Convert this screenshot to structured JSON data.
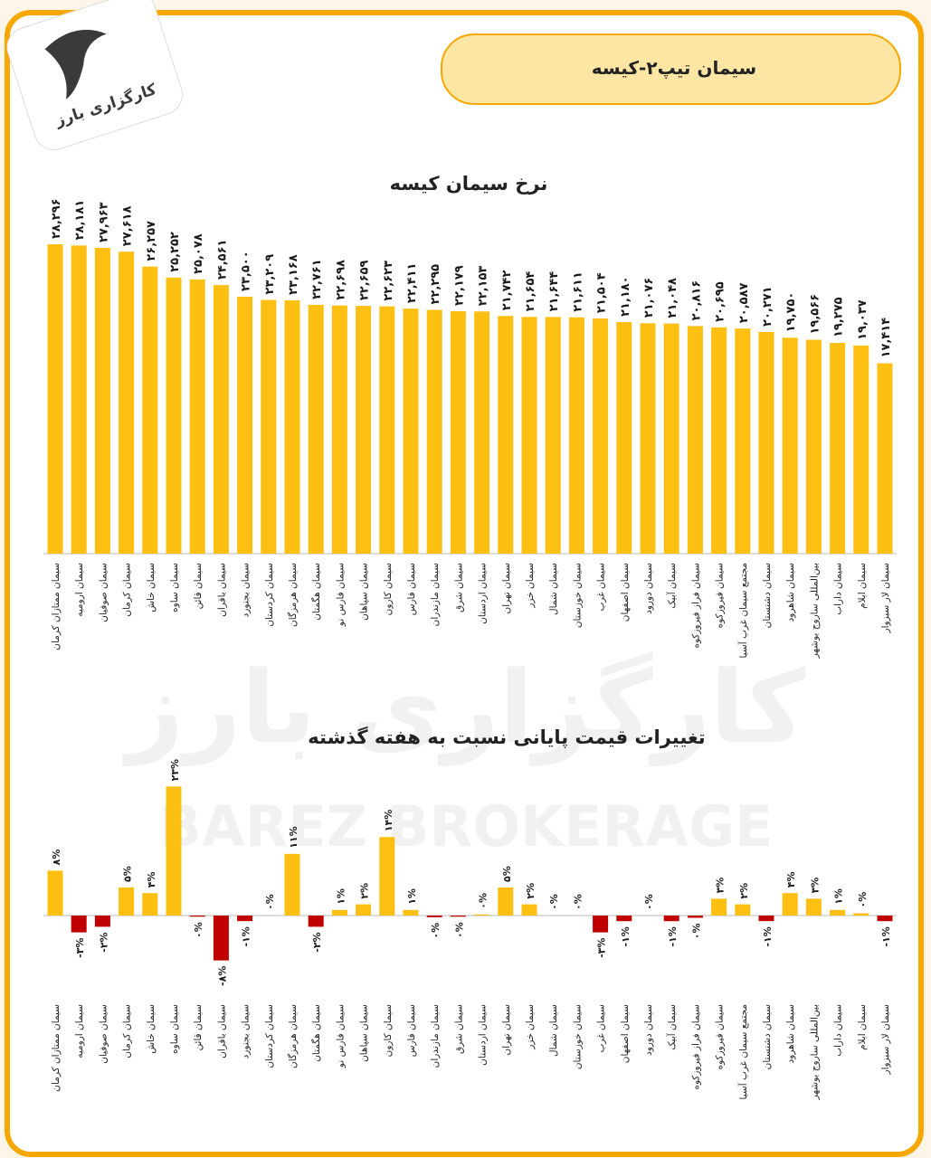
{
  "header": {
    "title": "سیمان تیپ۲-کیسه",
    "logo": "کارگزاری بارز",
    "watermark_fa": "کارگزاری بارز",
    "watermark_en": "BAREZ BROKERAGE"
  },
  "chart_data": [
    {
      "type": "bar",
      "title": "نرخ سیمان کیسه",
      "color": "#fdbf12",
      "categories": [
        "سیمان ممتازان کرمان",
        "سیمان ارومیه",
        "سیمان صوفیان",
        "سیمان کرمان",
        "سیمان خاش",
        "سیمان ساوه",
        "سیمان قائن",
        "سیمان باقران",
        "سیمان بجنورد",
        "سیمان کردستان",
        "سیمان هرمزگان",
        "سیمان هگمتان",
        "سیمان فارس نو",
        "سیمان سپاهان",
        "سیمان کارون",
        "سیمان فارس",
        "سیمان مازندران",
        "سیمان شرق",
        "سیمان اردستان",
        "سیمان تهران",
        "سیمان خزر",
        "سیمان شمال",
        "سیمان خوزستان",
        "سیمان غرب",
        "سیمان اصفهان",
        "سیمان دورود",
        "سیمان آبیک",
        "سیمان فراز فیروزکوه",
        "سیمان فیروزکوه",
        "مجتمع سیمان غرب آسیا",
        "سیمان دشتستان",
        "سیمان شاهرود",
        "بین‌المللی ساروج بوشهر",
        "سیمان داراب",
        "سیمان ایلام",
        "سیمان لار سبزوار"
      ],
      "values": [
        28296,
        28181,
        27963,
        27618,
        26257,
        25252,
        25078,
        24561,
        23500,
        23209,
        23168,
        22761,
        22698,
        22659,
        22623,
        22411,
        22295,
        22179,
        22153,
        21742,
        21654,
        21644,
        21611,
        21504,
        21180,
        21076,
        21048,
        20816,
        20695,
        20587,
        20271,
        19750,
        19566,
        19275,
        19037,
        17414
      ],
      "value_labels": [
        "۲۸,۲۹۶",
        "۲۸,۱۸۱",
        "۲۷,۹۶۳",
        "۲۷,۶۱۸",
        "۲۶,۲۵۷",
        "۲۵,۲۵۲",
        "۲۵,۰۷۸",
        "۲۴,۵۶۱",
        "۲۳,۵۰۰",
        "۲۳,۲۰۹",
        "۲۳,۱۶۸",
        "۲۲,۷۶۱",
        "۲۲,۶۹۸",
        "۲۲,۶۵۹",
        "۲۲,۶۲۳",
        "۲۲,۴۱۱",
        "۲۲,۲۹۵",
        "۲۲,۱۷۹",
        "۲۲,۱۵۳",
        "۲۱,۷۴۲",
        "۲۱,۶۵۴",
        "۲۱,۶۴۴",
        "۲۱,۶۱۱",
        "۲۱,۵۰۴",
        "۲۱,۱۸۰",
        "۲۱,۰۷۶",
        "۲۱,۰۴۸",
        "۲۰,۸۱۶",
        "۲۰,۶۹۵",
        "۲۰,۵۸۷",
        "۲۰,۲۷۱",
        "۱۹,۷۵۰",
        "۱۹,۵۶۶",
        "۱۹,۲۷۵",
        "۱۹,۰۳۷",
        "۱۷,۴۱۴"
      ]
    },
    {
      "type": "bar",
      "title": "تغییرات قیمت پایانی نسبت به هفته گذشته",
      "color": "#fdbf12",
      "negative_color": "#c00000",
      "categories": [
        "سیمان ممتازان کرمان",
        "سیمان ارومیه",
        "سیمان صوفیان",
        "سیمان کرمان",
        "سیمان خاش",
        "سیمان ساوه",
        "سیمان قائن",
        "سیمان باقران",
        "سیمان بجنورد",
        "سیمان کردستان",
        "سیمان هرمزگان",
        "سیمان هگمتان",
        "سیمان فارس نو",
        "سیمان سپاهان",
        "سیمان کارون",
        "سیمان فارس",
        "سیمان مازندران",
        "سیمان شرق",
        "سیمان اردستان",
        "سیمان تهران",
        "سیمان خزر",
        "سیمان شمال",
        "سیمان خوزستان",
        "سیمان غرب",
        "سیمان اصفهان",
        "سیمان دورود",
        "سیمان آبیک",
        "سیمان فراز فیروزکوه",
        "سیمان فیروزکوه",
        "مجتمع سیمان غرب آسیا",
        "سیمان دشتستان",
        "سیمان شاهرود",
        "بین‌المللی ساروج بوشهر",
        "سیمان داراب",
        "سیمان ایلام",
        "سیمان لار سبزوار"
      ],
      "values": [
        8,
        -3,
        -2,
        5,
        4,
        23,
        -0.2,
        -8,
        -1,
        0,
        11,
        -2,
        1,
        2,
        14,
        1,
        -0.3,
        -0.2,
        0.2,
        5,
        2,
        0,
        0,
        -3,
        -1,
        0,
        -1,
        -0.4,
        3,
        2,
        -1,
        4,
        3,
        1,
        0.4,
        -1
      ],
      "value_labels": [
        "۸%",
        "-۳%",
        "-۲%",
        "۵%",
        "۴%",
        "۲۳%",
        "۰%",
        "-۸%",
        "-۱%",
        "۰%",
        "۱۱%",
        "-۲%",
        "۱%",
        "۲%",
        "۱۴%",
        "۱%",
        "۰%",
        "۰%",
        "۰%",
        "۵%",
        "۲%",
        "۰%",
        "۰%",
        "-۳%",
        "-۱%",
        "۰%",
        "-۱%",
        "۰%",
        "۳%",
        "۲%",
        "-۱%",
        "۴%",
        "۳%",
        "۱%",
        "۰%",
        "-۱%"
      ]
    }
  ]
}
